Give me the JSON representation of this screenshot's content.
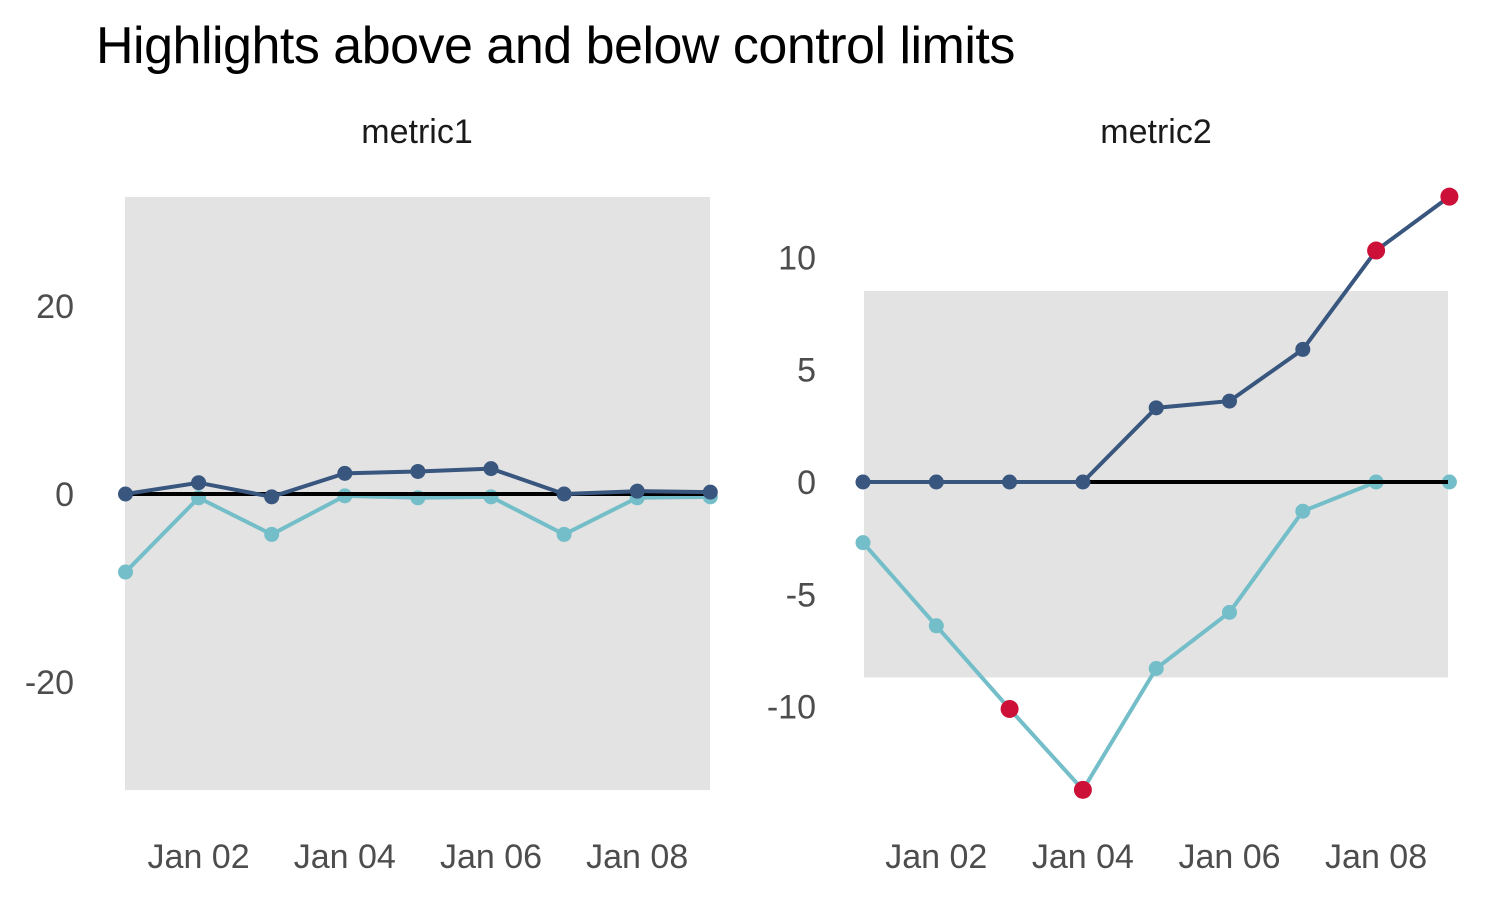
{
  "page": {
    "title": "Highlights above and below control limits"
  },
  "colors": {
    "background": "#ffffff",
    "band": "#e3e3e3",
    "center_line": "#000000",
    "axis_text": "#4d4d4d",
    "panel_title_text": "#1a1a1a",
    "title_text": "#000000",
    "dark_blue": "#39567f",
    "light_blue": "#73bec8",
    "out_of_control_red": "#cc1037"
  },
  "chart_data": [
    {
      "type": "line",
      "panel_title": "metric1",
      "n_points": 9,
      "x_tick_labels": [
        "Jan 02",
        "Jan 04",
        "Jan 06",
        "Jan 08"
      ],
      "x_tick_indices": [
        1,
        3,
        5,
        7
      ],
      "y_ticks": [
        {
          "value": 20,
          "label": "20"
        },
        {
          "value": 0,
          "label": "0"
        },
        {
          "value": -20,
          "label": "-20"
        }
      ],
      "center_line_value": 0,
      "control_limits": {
        "upper": 31.6,
        "lower": -31.5
      },
      "grid": false,
      "legend": "none",
      "series": [
        {
          "name": "light_blue",
          "color_key": "light_blue",
          "values": [
            -8.3,
            -0.4,
            -4.3,
            -0.2,
            -0.4,
            -0.3,
            -4.3,
            -0.4,
            -0.3
          ],
          "out_of_control_indices": []
        },
        {
          "name": "dark_blue",
          "color_key": "dark_blue",
          "values": [
            0,
            1.2,
            -0.3,
            2.2,
            2.4,
            2.7,
            0,
            0.3,
            0.2
          ],
          "out_of_control_indices": []
        }
      ]
    },
    {
      "type": "line",
      "panel_title": "metric2",
      "n_points": 9,
      "x_tick_labels": [
        "Jan 02",
        "Jan 04",
        "Jan 06",
        "Jan 08"
      ],
      "x_tick_indices": [
        1,
        3,
        5,
        7
      ],
      "y_ticks": [
        {
          "value": 10,
          "label": "10"
        },
        {
          "value": 5,
          "label": "5"
        },
        {
          "value": 0,
          "label": "0"
        },
        {
          "value": -5,
          "label": "-5"
        },
        {
          "value": -10,
          "label": "-10"
        }
      ],
      "center_line_value": 0,
      "control_limits": {
        "upper": 8.5,
        "lower": -8.7
      },
      "grid": false,
      "legend": "none",
      "series": [
        {
          "name": "light_blue",
          "color_key": "light_blue",
          "values": [
            -2.7,
            -6.4,
            -10.1,
            -13.7,
            -8.3,
            -5.8,
            -1.3,
            0,
            0
          ],
          "out_of_control_indices": [
            2,
            3
          ]
        },
        {
          "name": "dark_blue",
          "color_key": "dark_blue",
          "values": [
            0,
            0,
            0,
            0,
            3.3,
            3.6,
            5.9,
            10.3,
            12.7
          ],
          "out_of_control_indices": [
            7,
            8
          ]
        }
      ]
    }
  ]
}
